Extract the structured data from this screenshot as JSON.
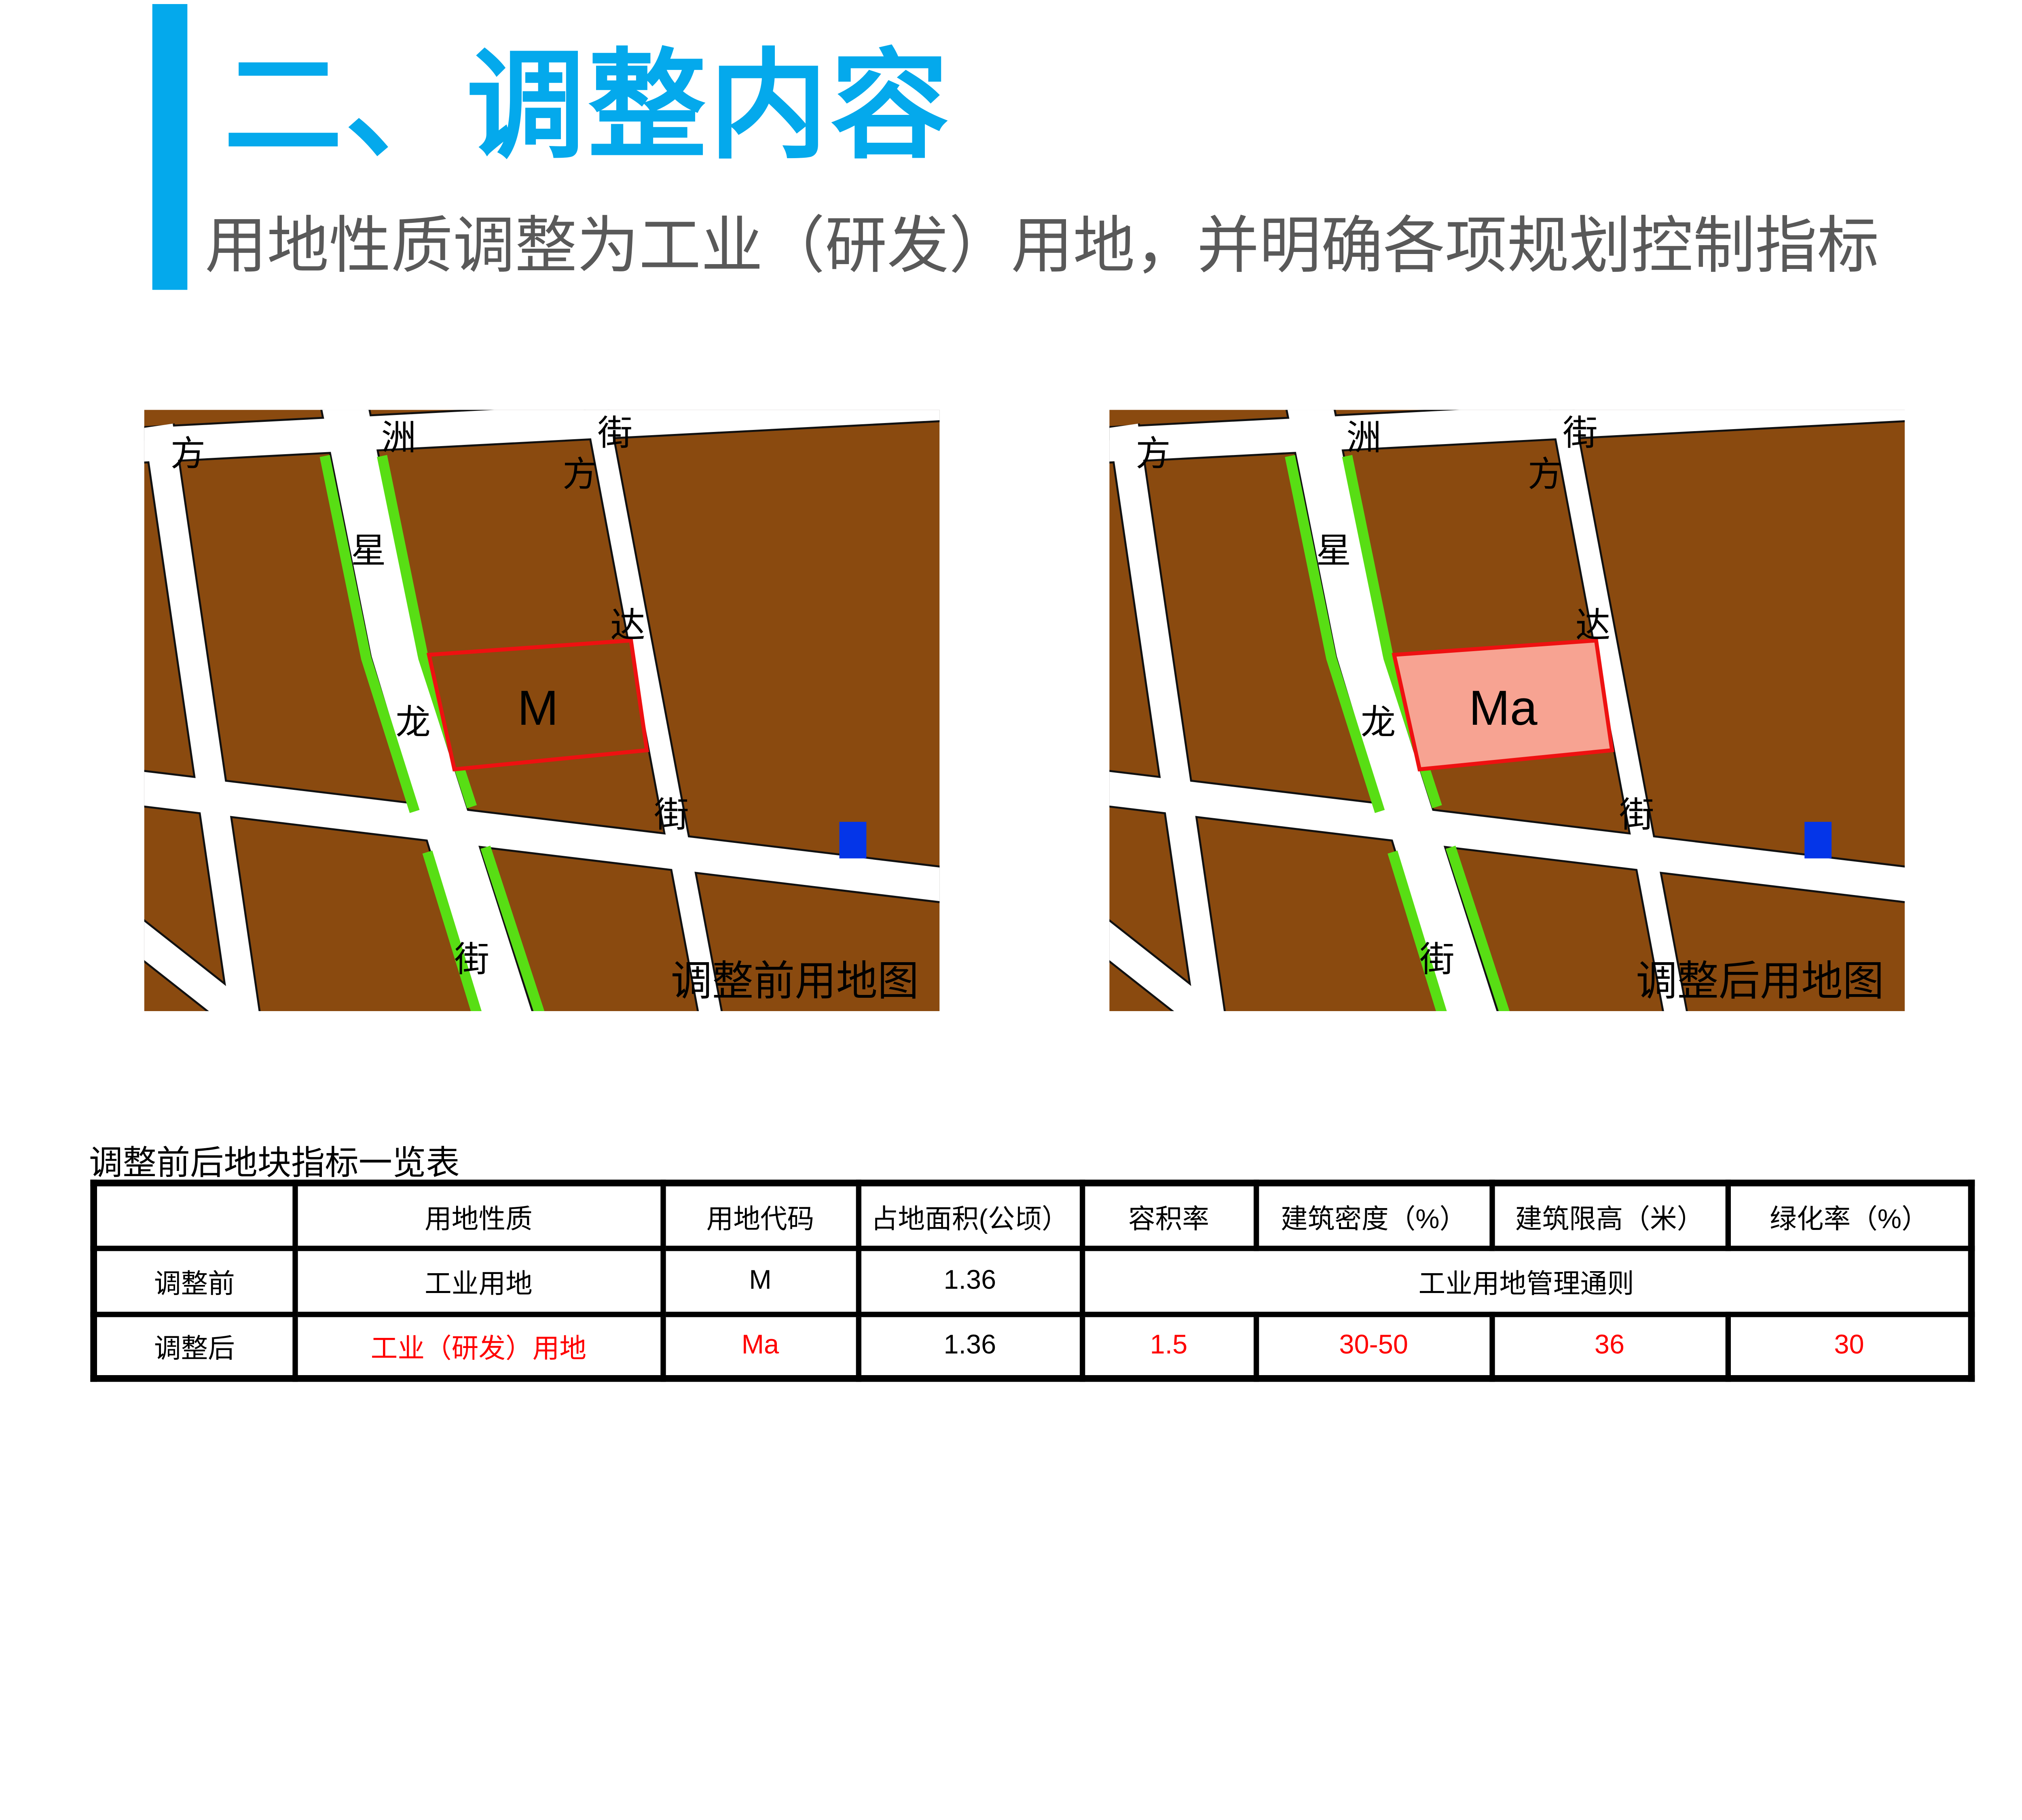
{
  "header": {
    "accent_color": "#04A9EC",
    "title": "二、调整内容",
    "title_color": "#04A9EC",
    "subtitle": "用地性质调整为工业（研发）用地，并明确各项规划控制指标",
    "subtitle_color": "#595959"
  },
  "maps": {
    "colors": {
      "parcel_brown": "#8A4A0F",
      "street_white": "#FFFFFF",
      "greenbelt": "#58DE14",
      "outline": "#111111",
      "highlight_red": "#EE1111",
      "highlight_pink": "#F7A392",
      "water_blue": "#0435E8",
      "label_black": "#000000"
    },
    "street_labels": [
      "方",
      "洲",
      "街",
      "方",
      "星",
      "达",
      "龙",
      "街",
      "街"
    ],
    "before": {
      "caption": "调整前用地图",
      "parcel_label": "M",
      "parcel_filled": false
    },
    "after": {
      "caption": "调整后用地图",
      "parcel_label": "Ma",
      "parcel_filled": true
    }
  },
  "table": {
    "title": "调整前后地块指标一览表",
    "red_color": "#FF0000",
    "headers": [
      "",
      "用地性质",
      "用地代码",
      "占地面积(公顷）",
      "容积率",
      "建筑密度（%）",
      "建筑限高（米）",
      "绿化率（%）"
    ],
    "rows": [
      {
        "label": "调整前",
        "cells": [
          {
            "text": "工业用地",
            "red": false
          },
          {
            "text": "M",
            "red": false
          },
          {
            "text": "1.36",
            "red": false
          },
          {
            "text": "工业用地管理通则",
            "red": false,
            "span": 4
          }
        ]
      },
      {
        "label": "调整后",
        "cells": [
          {
            "text": "工业（研发）用地",
            "red": true
          },
          {
            "text": "Ma",
            "red": true
          },
          {
            "text": "1.36",
            "red": false
          },
          {
            "text": "1.5",
            "red": true
          },
          {
            "text": "30-50",
            "red": true
          },
          {
            "text": "36",
            "red": true
          },
          {
            "text": "30",
            "red": true
          }
        ]
      }
    ]
  }
}
